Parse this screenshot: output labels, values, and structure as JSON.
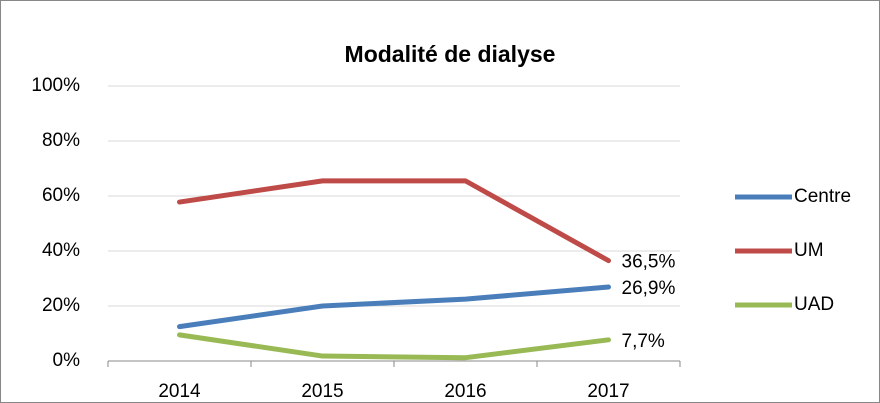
{
  "chart_data": {
    "type": "line",
    "title": "Modalité de dialyse",
    "categories": [
      "2014",
      "2015",
      "2016",
      "2017"
    ],
    "series": [
      {
        "name": "Centre",
        "color": "#4a7ebb",
        "values": [
          12.5,
          20,
          22.5,
          26.9
        ],
        "value_labels": [
          null,
          null,
          null,
          "26,9%"
        ]
      },
      {
        "name": "UM",
        "color": "#be4b48",
        "values": [
          57.8,
          65.5,
          65.5,
          36.5
        ],
        "value_labels": [
          null,
          null,
          null,
          "36,5%"
        ]
      },
      {
        "name": "UAD",
        "color": "#98b954",
        "values": [
          9.5,
          1.8,
          1.2,
          7.7
        ],
        "value_labels": [
          null,
          null,
          null,
          "7,7%"
        ]
      }
    ],
    "ylim": [
      0,
      100
    ],
    "yticks": [
      {
        "value": 0,
        "label": "0%"
      },
      {
        "value": 20,
        "label": "20%"
      },
      {
        "value": 40,
        "label": "40%"
      },
      {
        "value": 60,
        "label": "60%"
      },
      {
        "value": 80,
        "label": "80%"
      },
      {
        "value": 100,
        "label": "100%"
      }
    ],
    "grid": true,
    "legend": "right"
  }
}
